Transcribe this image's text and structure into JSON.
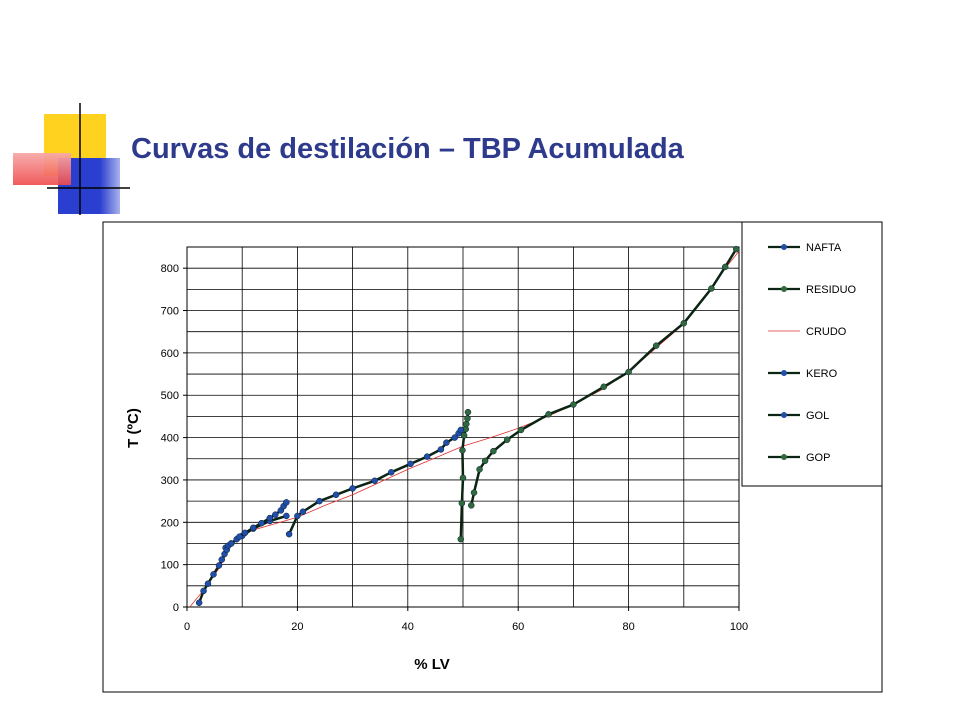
{
  "slide": {
    "title": "Curvas de destilación – TBP Acumulada"
  },
  "colors": {
    "title": "#2E3B8C",
    "deco_yellow": "#FFD21F",
    "deco_blue": "#2A3FCF",
    "deco_red": "#F04A4A",
    "crudo_line": "#E03030",
    "dark_line": "#0B2413",
    "marker_blue": "#1F4FA8",
    "marker_green": "#2F6B3A"
  },
  "chart_data": {
    "type": "line",
    "xlabel": "% LV",
    "ylabel": "T (ºC)",
    "xlim": [
      0,
      100
    ],
    "ylim": [
      0,
      850
    ],
    "xticks": [
      0,
      20,
      40,
      60,
      80,
      100
    ],
    "yticks": [
      0,
      100,
      200,
      300,
      400,
      500,
      600,
      700,
      800
    ],
    "grid": true,
    "legend_position": "right",
    "series": [
      {
        "name": "NAFTA",
        "style": "line-marker-blue",
        "points": [
          [
            2.2,
            10
          ],
          [
            3,
            38
          ],
          [
            3.8,
            55
          ],
          [
            4.8,
            77
          ],
          [
            5.8,
            98
          ],
          [
            6.3,
            112
          ],
          [
            6.8,
            125
          ],
          [
            7.2,
            135
          ],
          [
            7.5,
            145
          ],
          [
            8,
            150
          ],
          [
            9,
            160
          ],
          [
            9.5,
            166
          ],
          [
            10.5,
            175
          ],
          [
            12,
            187
          ],
          [
            13.5,
            198
          ],
          [
            15,
            210
          ],
          [
            16,
            218
          ],
          [
            17,
            228
          ],
          [
            17.5,
            238
          ],
          [
            18,
            247
          ]
        ]
      },
      {
        "name": "RESIDUO",
        "style": "line-marker-green",
        "points": [
          [
            49.6,
            160
          ],
          [
            49.8,
            245
          ],
          [
            50,
            305
          ],
          [
            49.9,
            370
          ],
          [
            50.2,
            405
          ],
          [
            50.5,
            420
          ],
          [
            50.6,
            432
          ],
          [
            50.8,
            445
          ],
          [
            50.9,
            460
          ]
        ]
      },
      {
        "name": "CRUDO",
        "style": "thin-red",
        "points": [
          [
            0.5,
            0
          ],
          [
            3,
            40
          ],
          [
            6,
            95
          ],
          [
            8,
            150
          ],
          [
            11,
            178
          ],
          [
            20,
            212
          ],
          [
            25,
            240
          ],
          [
            30,
            265
          ],
          [
            35,
            295
          ],
          [
            40,
            325
          ],
          [
            45,
            352
          ],
          [
            50,
            380
          ],
          [
            55,
            400
          ],
          [
            60,
            422
          ],
          [
            65,
            448
          ],
          [
            70,
            478
          ],
          [
            75,
            512
          ],
          [
            80,
            555
          ],
          [
            85,
            612
          ],
          [
            90,
            668
          ],
          [
            95,
            750
          ],
          [
            97.5,
            800
          ],
          [
            100,
            840
          ]
        ]
      },
      {
        "name": "KERO",
        "style": "line-marker-blue",
        "points": [
          [
            7,
            140
          ],
          [
            8,
            150
          ],
          [
            10,
            168
          ],
          [
            12,
            185
          ],
          [
            15,
            203
          ],
          [
            18,
            215
          ]
        ]
      },
      {
        "name": "GOL",
        "style": "line-marker-blue",
        "points": [
          [
            18.5,
            172
          ],
          [
            20,
            215
          ],
          [
            21,
            225
          ],
          [
            24,
            250
          ],
          [
            27,
            265
          ],
          [
            30,
            280
          ],
          [
            34,
            298
          ],
          [
            37,
            318
          ],
          [
            40.5,
            338
          ],
          [
            43.5,
            355
          ],
          [
            46,
            372
          ],
          [
            47,
            388
          ],
          [
            48.5,
            400
          ],
          [
            49.2,
            410
          ],
          [
            49.6,
            418
          ]
        ]
      },
      {
        "name": "GOP",
        "style": "line-marker-green",
        "points": [
          [
            51.5,
            240
          ],
          [
            52,
            270
          ],
          [
            53,
            325
          ],
          [
            54,
            345
          ],
          [
            55.5,
            368
          ],
          [
            58,
            395
          ],
          [
            60.5,
            418
          ],
          [
            65.5,
            455
          ],
          [
            70,
            478
          ],
          [
            75.5,
            520
          ],
          [
            80,
            555
          ],
          [
            85,
            617
          ],
          [
            90,
            670
          ],
          [
            95,
            752
          ],
          [
            97.5,
            803
          ],
          [
            99.5,
            845
          ]
        ]
      }
    ]
  }
}
